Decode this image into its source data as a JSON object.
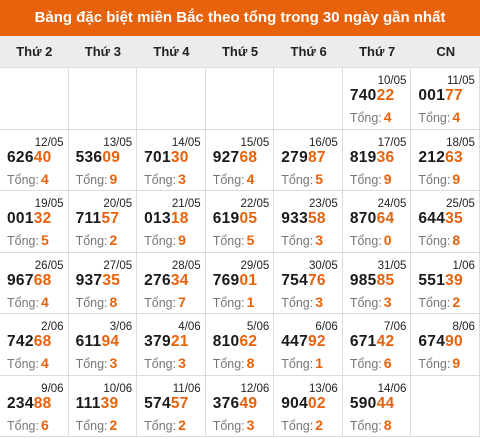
{
  "title": "Bảng đặc biệt miền Bắc theo tổng trong 30 ngày gần nhất",
  "days": [
    "Thứ 2",
    "Thứ 3",
    "Thứ 4",
    "Thứ 5",
    "Thứ 6",
    "Thứ 7",
    "CN"
  ],
  "sum_label": "Tổng:",
  "rows": [
    [
      {
        "empty": true
      },
      {
        "empty": true
      },
      {
        "empty": true
      },
      {
        "empty": true
      },
      {
        "empty": true
      },
      {
        "date": "10/05",
        "prefix": "740",
        "tail": "22",
        "sum": "4"
      },
      {
        "date": "11/05",
        "prefix": "001",
        "tail": "77",
        "sum": "4"
      }
    ],
    [
      {
        "date": "12/05",
        "prefix": "626",
        "tail": "40",
        "sum": "4"
      },
      {
        "date": "13/05",
        "prefix": "536",
        "tail": "09",
        "sum": "9"
      },
      {
        "date": "14/05",
        "prefix": "701",
        "tail": "30",
        "sum": "3"
      },
      {
        "date": "15/05",
        "prefix": "927",
        "tail": "68",
        "sum": "4"
      },
      {
        "date": "16/05",
        "prefix": "279",
        "tail": "87",
        "sum": "5"
      },
      {
        "date": "17/05",
        "prefix": "819",
        "tail": "36",
        "sum": "9"
      },
      {
        "date": "18/05",
        "prefix": "212",
        "tail": "63",
        "sum": "9"
      }
    ],
    [
      {
        "date": "19/05",
        "prefix": "001",
        "tail": "32",
        "sum": "5"
      },
      {
        "date": "20/05",
        "prefix": "711",
        "tail": "57",
        "sum": "2"
      },
      {
        "date": "21/05",
        "prefix": "013",
        "tail": "18",
        "sum": "9"
      },
      {
        "date": "22/05",
        "prefix": "619",
        "tail": "05",
        "sum": "5"
      },
      {
        "date": "23/05",
        "prefix": "933",
        "tail": "58",
        "sum": "3"
      },
      {
        "date": "24/05",
        "prefix": "870",
        "tail": "64",
        "sum": "0"
      },
      {
        "date": "25/05",
        "prefix": "644",
        "tail": "35",
        "sum": "8"
      }
    ],
    [
      {
        "date": "26/05",
        "prefix": "967",
        "tail": "68",
        "sum": "4"
      },
      {
        "date": "27/05",
        "prefix": "937",
        "tail": "35",
        "sum": "8"
      },
      {
        "date": "28/05",
        "prefix": "276",
        "tail": "34",
        "sum": "7"
      },
      {
        "date": "29/05",
        "prefix": "769",
        "tail": "01",
        "sum": "1"
      },
      {
        "date": "30/05",
        "prefix": "754",
        "tail": "76",
        "sum": "3"
      },
      {
        "date": "31/05",
        "prefix": "985",
        "tail": "85",
        "sum": "3"
      },
      {
        "date": "1/06",
        "prefix": "551",
        "tail": "39",
        "sum": "2"
      }
    ],
    [
      {
        "date": "2/06",
        "prefix": "742",
        "tail": "68",
        "sum": "4"
      },
      {
        "date": "3/06",
        "prefix": "611",
        "tail": "94",
        "sum": "3"
      },
      {
        "date": "4/06",
        "prefix": "379",
        "tail": "21",
        "sum": "3"
      },
      {
        "date": "5/06",
        "prefix": "810",
        "tail": "62",
        "sum": "8"
      },
      {
        "date": "6/06",
        "prefix": "447",
        "tail": "92",
        "sum": "1"
      },
      {
        "date": "7/06",
        "prefix": "671",
        "tail": "42",
        "sum": "6"
      },
      {
        "date": "8/06",
        "prefix": "674",
        "tail": "90",
        "sum": "9"
      }
    ],
    [
      {
        "date": "9/06",
        "prefix": "234",
        "tail": "88",
        "sum": "6"
      },
      {
        "date": "10/06",
        "prefix": "111",
        "tail": "39",
        "sum": "2"
      },
      {
        "date": "11/06",
        "prefix": "574",
        "tail": "57",
        "sum": "2"
      },
      {
        "date": "12/06",
        "prefix": "376",
        "tail": "49",
        "sum": "3"
      },
      {
        "date": "13/06",
        "prefix": "904",
        "tail": "02",
        "sum": "2"
      },
      {
        "date": "14/06",
        "prefix": "590",
        "tail": "44",
        "sum": "8"
      },
      {
        "empty": true
      }
    ]
  ],
  "colors": {
    "accent": "#e8620c",
    "header_bg": "#ececec",
    "text": "#1a1a1a",
    "muted": "#777777"
  }
}
